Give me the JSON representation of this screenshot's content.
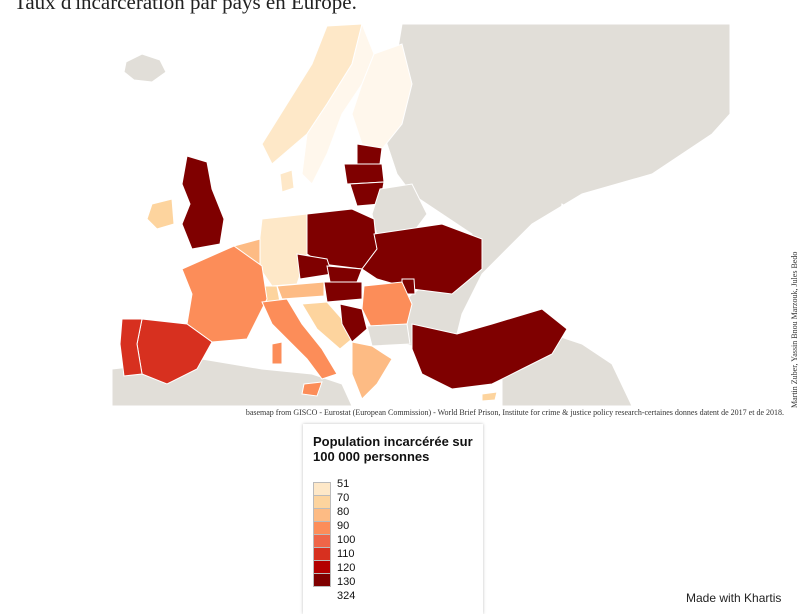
{
  "title": "Taux d'incarcération par pays en Europe.",
  "credit_side": "Martin Zuber, Yassin Bnou Marzouk, Jules Bedo",
  "source": "basemap from GISCO - Eurostat (European Commission) - World Brief Prison, Institute for crime & justice policy research-certaines donnes datent de 2017 et de 2018.",
  "legend": {
    "title": "Population incarcérée sur 100 000 personnes",
    "breaks": [
      "51",
      "70",
      "80",
      "90",
      "100",
      "110",
      "120",
      "130",
      "324"
    ],
    "colors": [
      "#fff7ec",
      "#fee8c8",
      "#fdd49e",
      "#fdbb84",
      "#fc8d59",
      "#ef6548",
      "#d7301f",
      "#b30000",
      "#7f0000"
    ]
  },
  "made_with": "Made with Khartis",
  "colors": {
    "no_data": "#e1ded8",
    "sea": "#ffffff",
    "border": "#ffffff"
  }
}
